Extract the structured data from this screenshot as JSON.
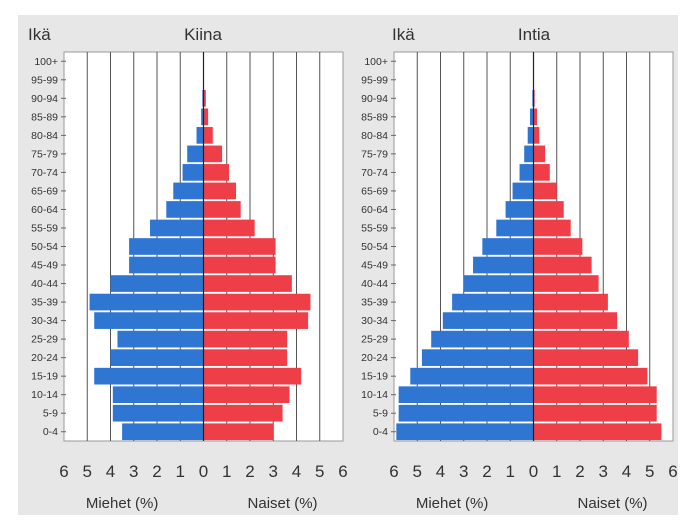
{
  "colors": {
    "background": "#ffffff",
    "panel_bg": "#e7e7e7",
    "plot_bg": "#ffffff",
    "male": "#2f76d2",
    "female": "#ee3e48",
    "grid": "#555555",
    "text": "#333333"
  },
  "chart_data": [
    {
      "type": "bar",
      "orientation": "horizontal",
      "title": "Kiina",
      "ylabel": "Ikä",
      "xlabel_left": "Miehet (%)",
      "xlabel_right": "Naiset (%)",
      "xlim": [
        -6,
        6
      ],
      "x_ticks": [
        "6",
        "5",
        "4",
        "3",
        "2",
        "1",
        "0",
        "1",
        "2",
        "3",
        "4",
        "5",
        "6"
      ],
      "grid": true,
      "categories": [
        "100+",
        "95-99",
        "90-94",
        "85-89",
        "80-84",
        "75-79",
        "70-74",
        "65-69",
        "60-64",
        "55-59",
        "50-54",
        "45-49",
        "40-44",
        "35-39",
        "30-34",
        "25-29",
        "20-24",
        "15-19",
        "10-14",
        "5-9",
        "0-4"
      ],
      "series": [
        {
          "name": "Miehet (%)",
          "values": [
            0,
            0,
            0.05,
            0.1,
            0.3,
            0.7,
            0.9,
            1.3,
            1.6,
            2.3,
            3.2,
            3.2,
            4.0,
            4.9,
            4.7,
            3.7,
            4.0,
            4.7,
            3.9,
            3.9,
            3.5
          ]
        },
        {
          "name": "Naiset (%)",
          "values": [
            0,
            0,
            0.1,
            0.2,
            0.4,
            0.8,
            1.1,
            1.4,
            1.6,
            2.2,
            3.1,
            3.1,
            3.8,
            4.6,
            4.5,
            3.6,
            3.6,
            4.2,
            3.7,
            3.4,
            3.0
          ]
        }
      ]
    },
    {
      "type": "bar",
      "orientation": "horizontal",
      "title": "Intia",
      "ylabel": "Ikä",
      "xlabel_left": "Miehet (%)",
      "xlabel_right": "Naiset (%)",
      "xlim": [
        -6,
        6
      ],
      "x_ticks": [
        "6",
        "5",
        "4",
        "3",
        "2",
        "1",
        "0",
        "1",
        "2",
        "3",
        "4",
        "5",
        "6"
      ],
      "grid": true,
      "categories": [
        "100+",
        "95-99",
        "90-94",
        "85-89",
        "80-84",
        "75-79",
        "70-74",
        "65-69",
        "60-64",
        "55-59",
        "50-54",
        "45-49",
        "40-44",
        "35-39",
        "30-34",
        "25-29",
        "20-24",
        "15-19",
        "10-14",
        "5-9",
        "0-4"
      ],
      "series": [
        {
          "name": "Miehet (%)",
          "values": [
            0,
            0,
            0.05,
            0.15,
            0.25,
            0.4,
            0.6,
            0.9,
            1.2,
            1.6,
            2.2,
            2.6,
            3.0,
            3.5,
            3.9,
            4.4,
            4.8,
            5.3,
            5.8,
            5.8,
            5.9
          ]
        },
        {
          "name": "Naiset (%)",
          "values": [
            0,
            0,
            0.05,
            0.15,
            0.25,
            0.5,
            0.7,
            1.0,
            1.3,
            1.6,
            2.1,
            2.5,
            2.8,
            3.2,
            3.6,
            4.1,
            4.5,
            4.9,
            5.3,
            5.3,
            5.5
          ]
        }
      ]
    }
  ]
}
